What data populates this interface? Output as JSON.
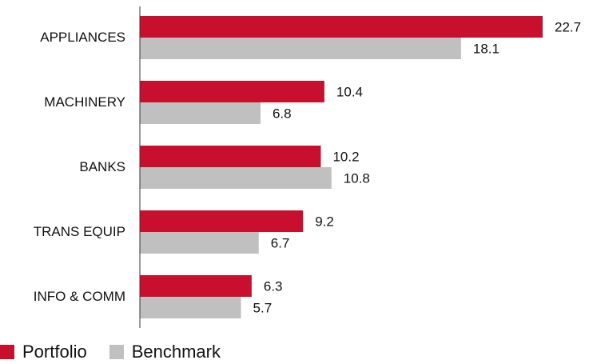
{
  "chart_data": {
    "type": "bar",
    "orientation": "horizontal",
    "categories": [
      "APPLIANCES",
      "MACHINERY",
      "BANKS",
      "TRANS EQUIP",
      "INFO & COMM"
    ],
    "series": [
      {
        "name": "Portfolio",
        "values": [
          22.7,
          10.4,
          10.2,
          9.2,
          6.3
        ],
        "color": "#c8102e"
      },
      {
        "name": "Benchmark",
        "values": [
          18.1,
          6.8,
          10.8,
          6.7,
          5.7
        ],
        "color": "#c0c0c0"
      }
    ],
    "xlim": [
      0,
      22.7
    ],
    "grid": false,
    "legend_position": "bottom-left"
  },
  "legend": {
    "portfolio_label": "Portfolio",
    "benchmark_label": "Benchmark"
  }
}
